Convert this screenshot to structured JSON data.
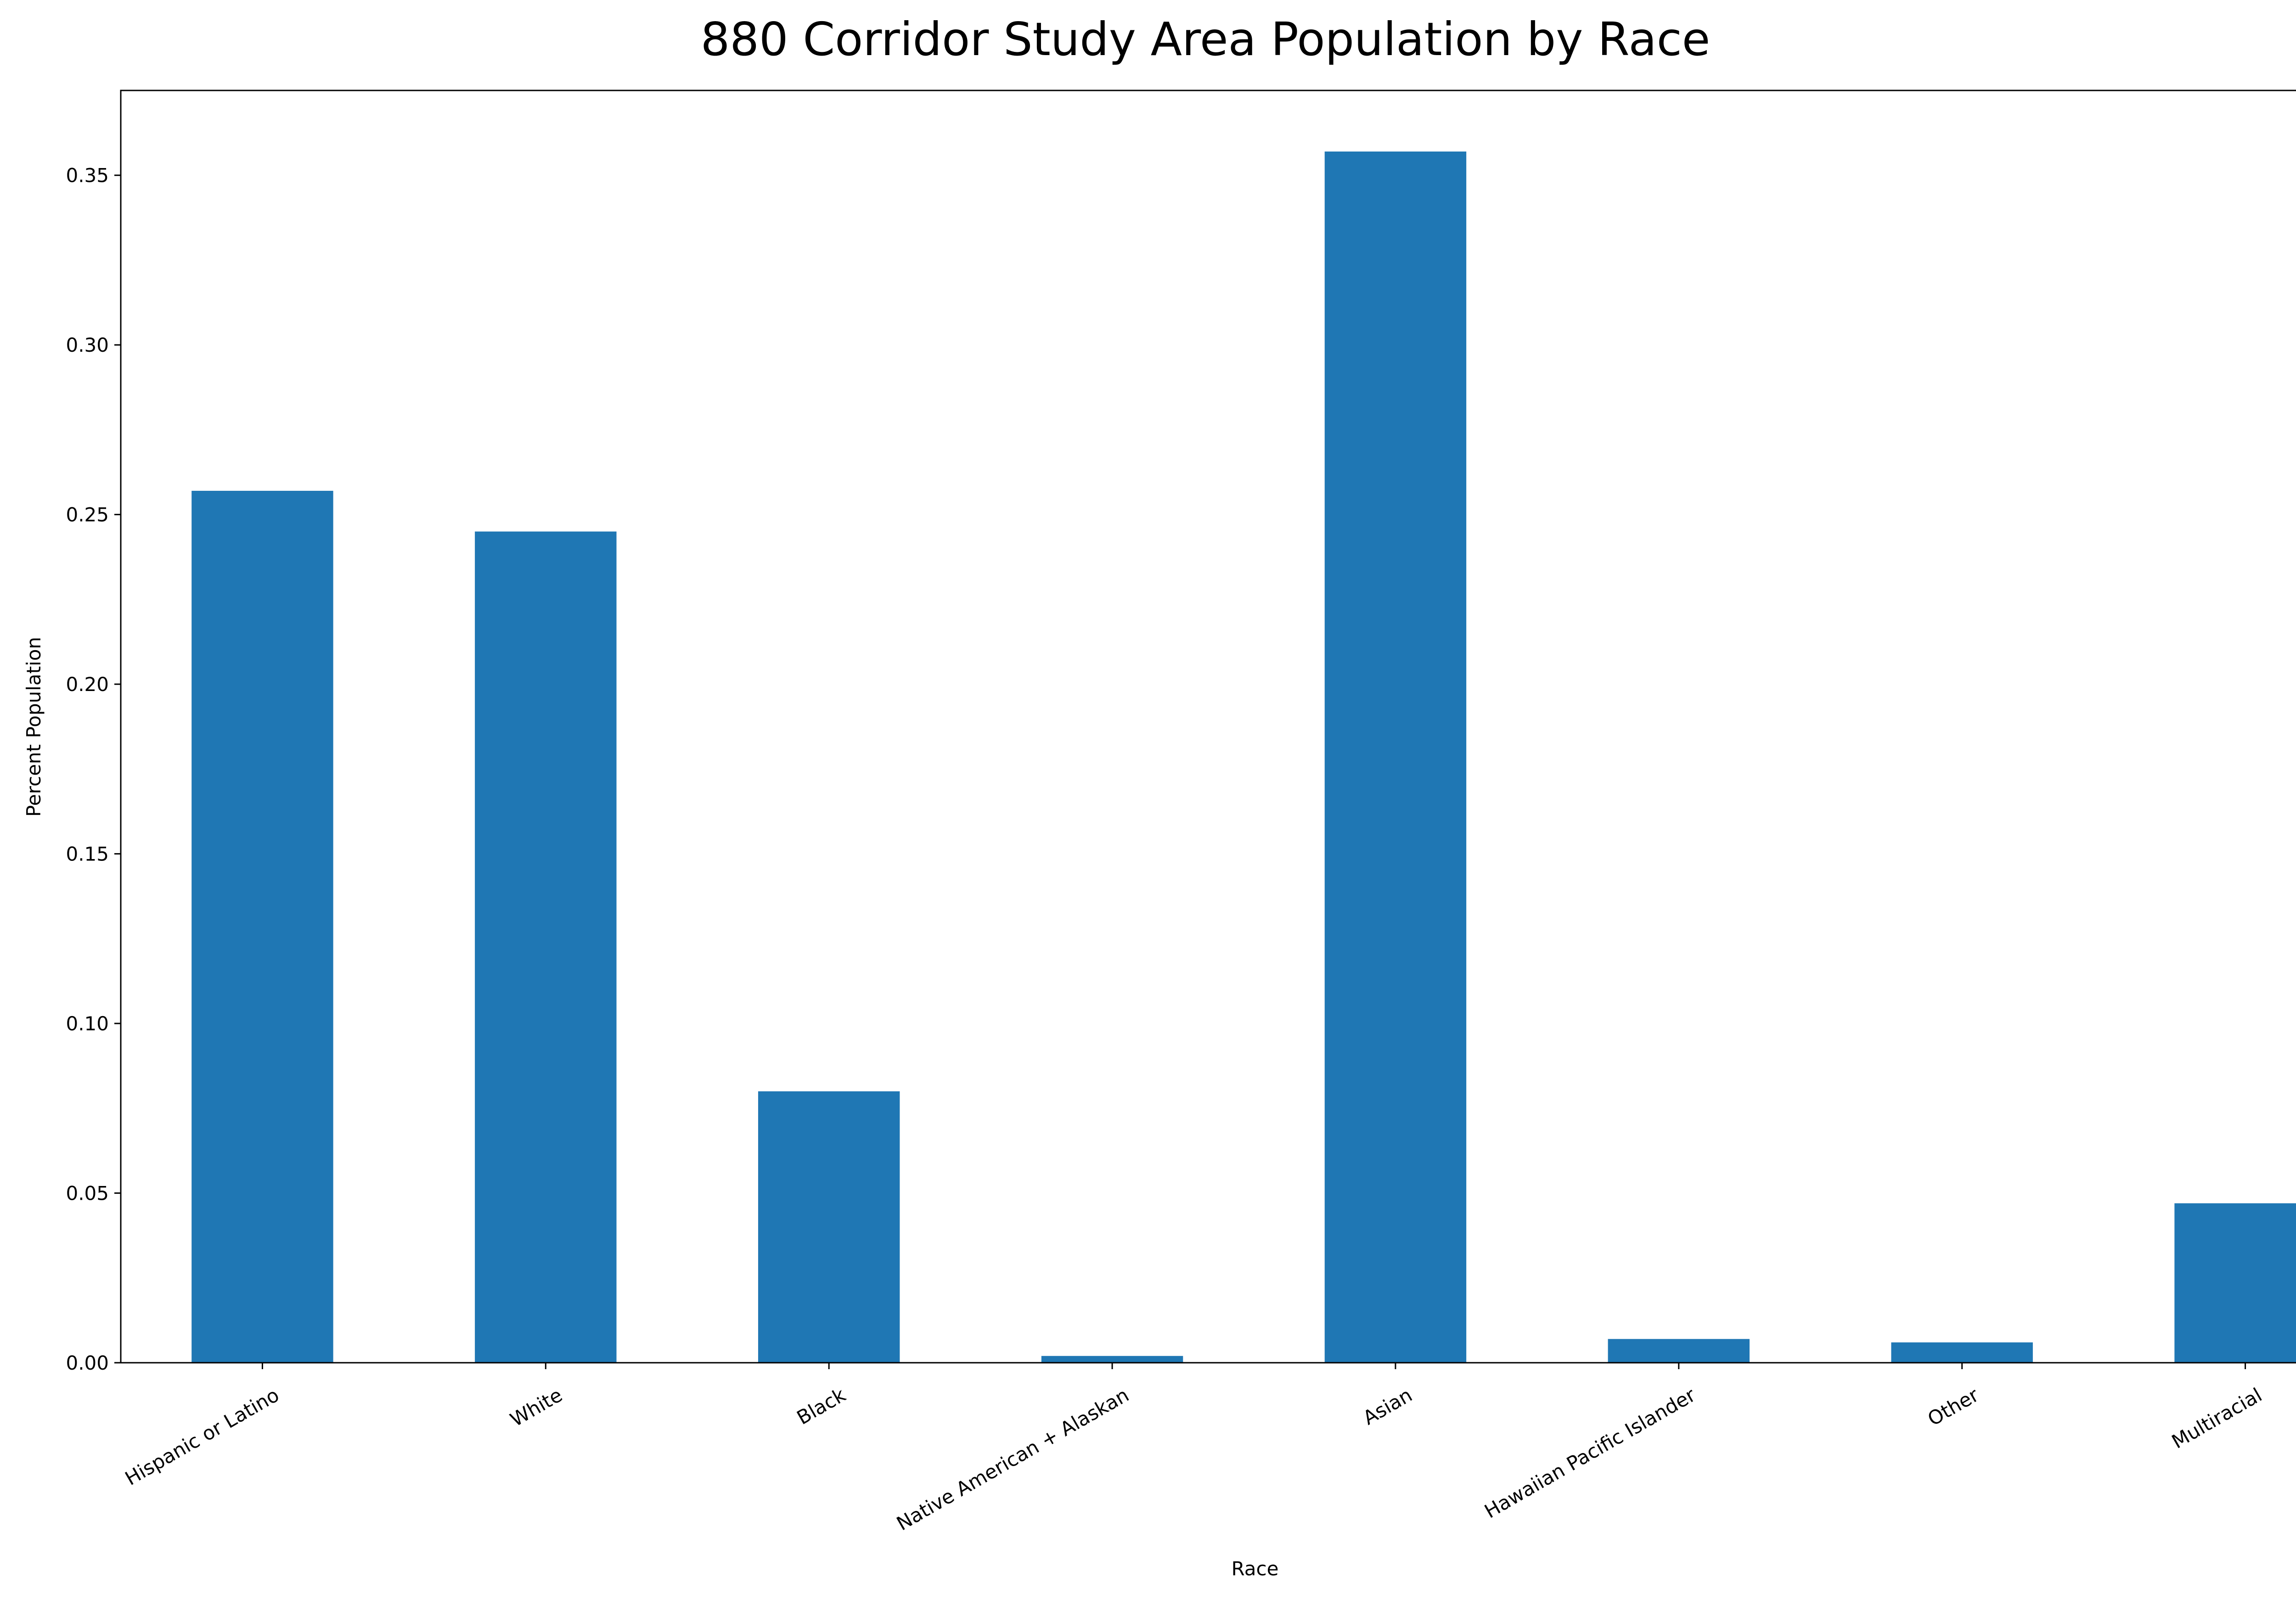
{
  "colors": {
    "bar": "#1f77b4",
    "axis": "#000000",
    "background": "#ffffff"
  },
  "chart_data": {
    "type": "bar",
    "title": "880 Corridor Study Area Population by Race",
    "xlabel": "Race",
    "ylabel": "Percent Population",
    "categories": [
      "Hispanic or Latino",
      "White",
      "Black",
      "Native American + Alaskan",
      "Asian",
      "Hawaiian Pacific Islander",
      "Other",
      "Multiracial"
    ],
    "values": [
      0.257,
      0.245,
      0.08,
      0.002,
      0.357,
      0.007,
      0.006,
      0.047
    ],
    "ylim": [
      0,
      0.375
    ],
    "yticks": [
      "0.00",
      "0.05",
      "0.10",
      "0.15",
      "0.20",
      "0.25",
      "0.30",
      "0.35"
    ],
    "grid": false,
    "legend": "none"
  }
}
